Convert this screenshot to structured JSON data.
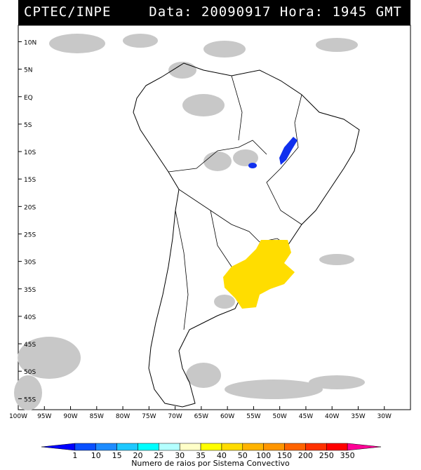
{
  "header": {
    "source": "CPTEC/INPE",
    "datetime": "Data: 20090917 Hora: 1945 GMT"
  },
  "map": {
    "lat_ticks": [
      "10N",
      "5N",
      "EQ",
      "5S",
      "10S",
      "15S",
      "20S",
      "25S",
      "30S",
      "35S",
      "40S",
      "45S",
      "50S",
      "55S"
    ],
    "lon_ticks": [
      "100W",
      "95W",
      "90W",
      "85W",
      "80W",
      "75W",
      "70W",
      "65W",
      "60W",
      "55W",
      "50W",
      "45W",
      "40W",
      "35W",
      "30W"
    ],
    "lat_values": [
      10,
      5,
      0,
      -5,
      -10,
      -15,
      -20,
      -25,
      -30,
      -35,
      -40,
      -45,
      -50,
      -55
    ],
    "lon_values": [
      -100,
      -95,
      -90,
      -85,
      -80,
      -75,
      -70,
      -65,
      -60,
      -55,
      -50,
      -45,
      -40,
      -35,
      -30
    ],
    "extent": {
      "lon": [
        -100,
        -25
      ],
      "lat": [
        -57,
        13
      ]
    },
    "lightning_areas": [
      {
        "region": "Rio Grande do Sul / Uruguay",
        "color": "#ffdd00"
      },
      {
        "region": "Tocantins / Bahia",
        "color": "#1030ee"
      }
    ]
  },
  "legend": {
    "values": [
      "1",
      "10",
      "15",
      "20",
      "25",
      "30",
      "35",
      "40",
      "50",
      "100",
      "150",
      "200",
      "250",
      "350"
    ],
    "colors": [
      "#0000ff",
      "#0a50ff",
      "#1e8cff",
      "#1ec8ff",
      "#00ffff",
      "#b4ffff",
      "#ffffc8",
      "#ffff00",
      "#ffdc00",
      "#ffb400",
      "#ff9600",
      "#ff6400",
      "#ff3200",
      "#ff0000",
      "#ff0096"
    ],
    "label": "Numero de raios por Sistema Convectivo"
  }
}
